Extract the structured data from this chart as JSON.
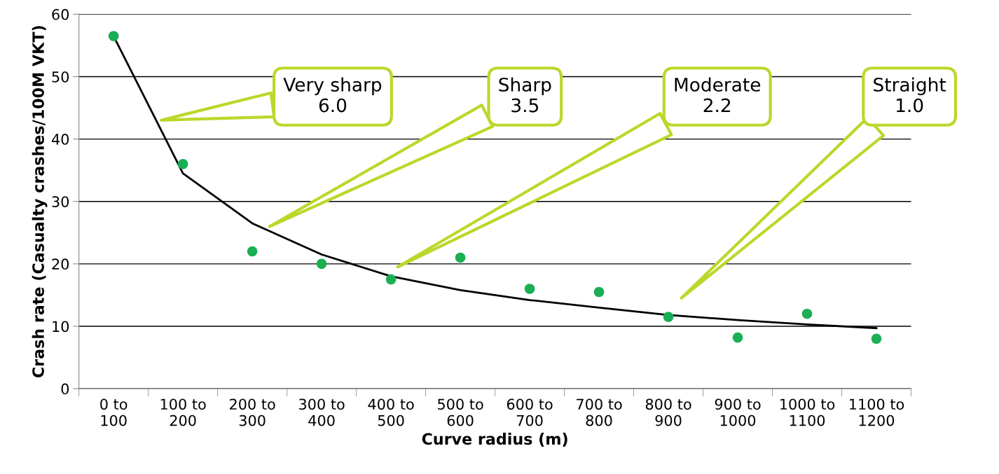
{
  "chart_data": {
    "type": "scatter",
    "xlabel": "Curve radius (m)",
    "ylabel": "Crash rate (Casualty crashes/100M VKT)",
    "categories": [
      "0 to 100",
      "100 to 200",
      "200 to 300",
      "300 to 400",
      "400 to 500",
      "500 to 600",
      "600 to 700",
      "700 to 800",
      "800 to 900",
      "900 to 1000",
      "1000 to 1100",
      "1100 to 1200"
    ],
    "series": [
      {
        "color": "#1aaf54",
        "values": [
          56.5,
          36,
          22,
          20,
          17.5,
          21,
          16,
          15.5,
          11.5,
          8.2,
          12,
          8
        ]
      },
      {
        "type": "line",
        "marker": "none",
        "color": "#000000",
        "values": [
          56.5,
          34.5,
          26.5,
          21.5,
          18,
          15.8,
          14.2,
          13,
          11.8,
          11,
          10.3,
          9.7
        ]
      }
    ],
    "annotations": [
      "Very sharp\n6.0",
      "Sharp\n3.5",
      "Moderate\n2.2",
      "Straight\n1.0"
    ],
    "ylim": [
      0,
      60
    ],
    "yticks": [
      0,
      10,
      20,
      30,
      40,
      50,
      60
    ],
    "grid": "y",
    "legend": false,
    "marker": "circle",
    "line_style": "solid"
  }
}
